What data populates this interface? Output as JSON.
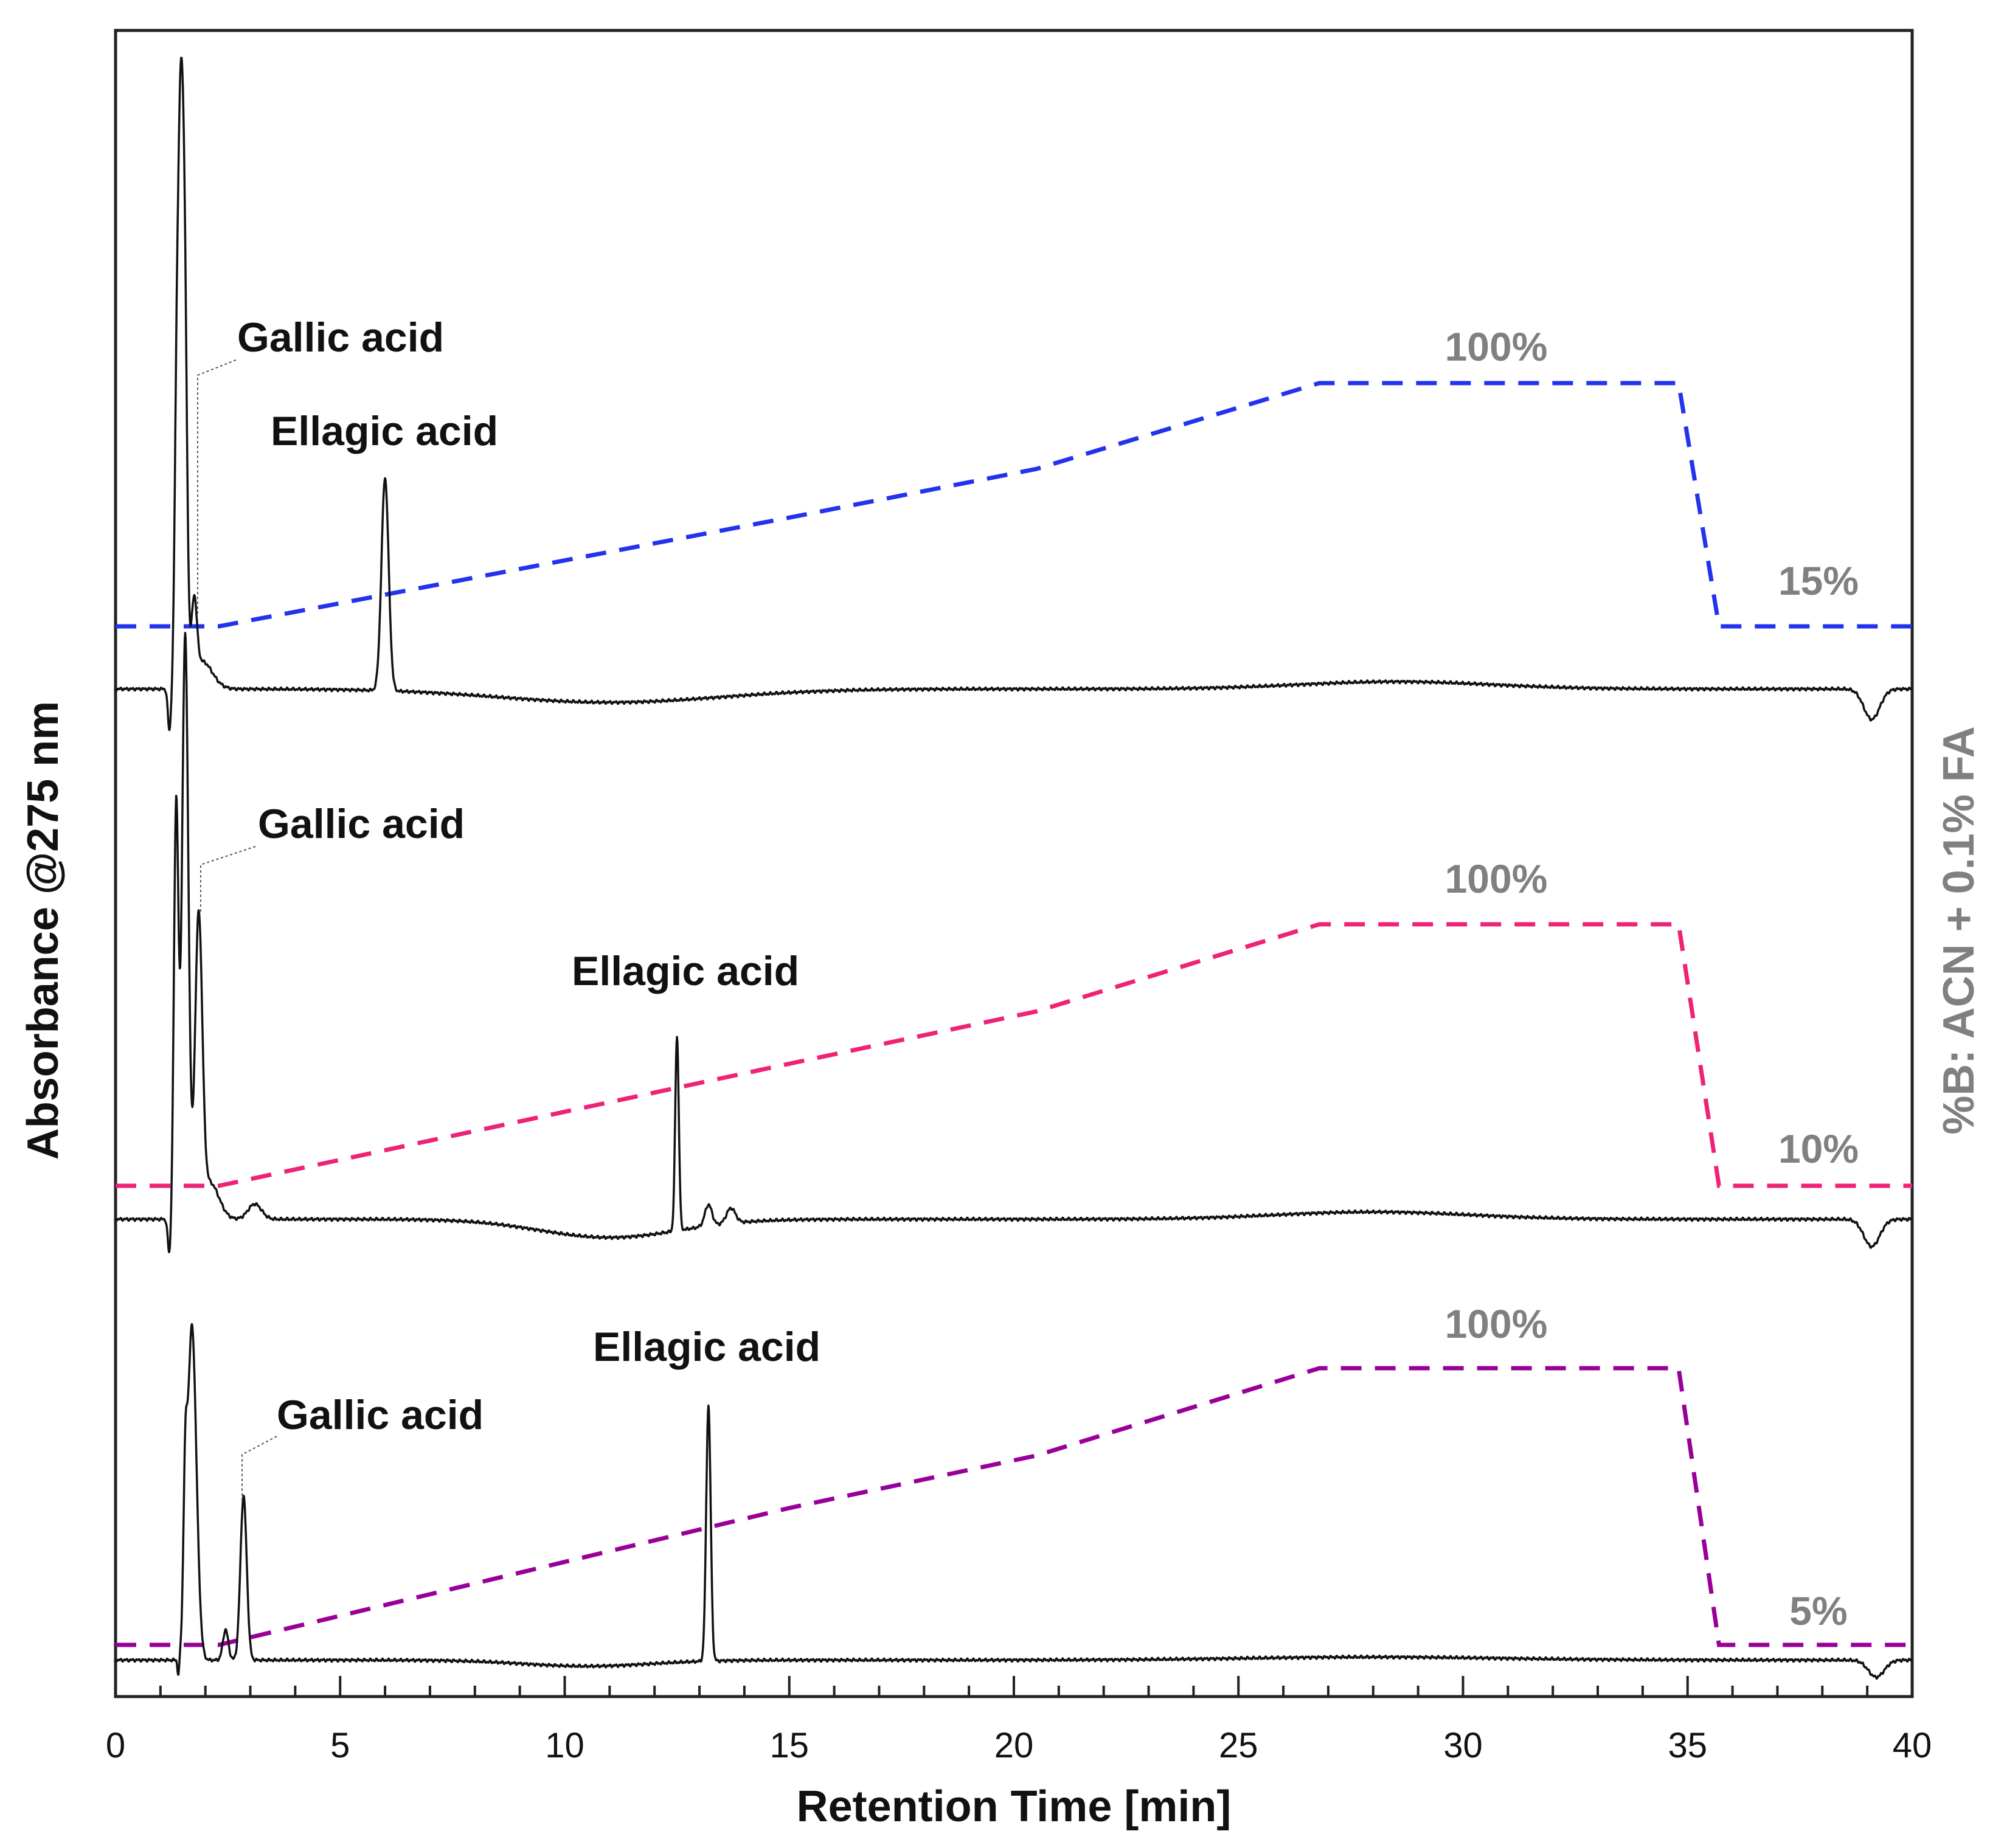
{
  "chart_data": {
    "type": "line",
    "xlabel": "Retention Time [min]",
    "ylabel": "Absorbance @275 nm",
    "y2label": "%B: ACN + 0.1% FA",
    "xlim": [
      0,
      40
    ],
    "xticks": [
      "0",
      "5",
      "10",
      "15",
      "20",
      "25",
      "30",
      "35",
      "40"
    ],
    "colors": {
      "trace": "#111111",
      "gradient_top": "#2233ee",
      "gradient_mid": "#ee2277",
      "gradient_bottom": "#990099",
      "percent_text": "#808080"
    },
    "panels": [
      {
        "name": "top",
        "color": "#2233ee",
        "gradient": {
          "start_label": "15%",
          "end_label": "100%",
          "x": [
            0,
            2.3,
            15,
            20.5,
            26.8,
            34.8,
            35.7,
            40
          ],
          "y": [
            15,
            15,
            53,
            70,
            100,
            100,
            15,
            15
          ]
        },
        "peaks": [
          {
            "name": "Gallic acid",
            "rt": 1.8
          },
          {
            "name": "Ellagic acid",
            "rt": 6.0
          }
        ]
      },
      {
        "name": "middle",
        "color": "#ee2277",
        "gradient": {
          "start_label": "10%",
          "end_label": "100%",
          "x": [
            0,
            2.3,
            15,
            20.5,
            26.8,
            34.8,
            35.7,
            40
          ],
          "y": [
            10,
            10,
            52,
            70,
            100,
            100,
            10,
            10
          ]
        },
        "peaks": [
          {
            "name": "Gallic acid",
            "rt": 1.9
          },
          {
            "name": "Ellagic acid",
            "rt": 12.5
          }
        ]
      },
      {
        "name": "bottom",
        "color": "#990099",
        "gradient": {
          "start_label": "5%",
          "end_label": "100%",
          "x": [
            0,
            2.3,
            15,
            20.5,
            26.8,
            34.8,
            35.7,
            40
          ],
          "y": [
            5,
            5,
            52,
            70,
            100,
            100,
            5,
            5
          ]
        },
        "peaks": [
          {
            "name": "Gallic acid",
            "rt": 2.85
          },
          {
            "name": "Ellagic acid",
            "rt": 13.2
          }
        ]
      }
    ]
  }
}
